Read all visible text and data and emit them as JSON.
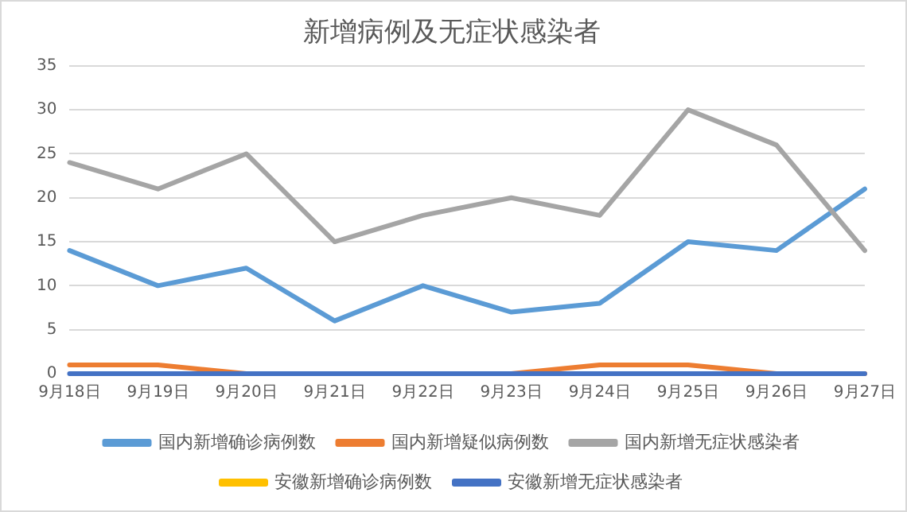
{
  "chart_data": {
    "type": "line",
    "title": "新增病例及无症状感染者",
    "categories": [
      "9月18日",
      "9月19日",
      "9月20日",
      "9月21日",
      "9月22日",
      "9月23日",
      "9月24日",
      "9月25日",
      "9月26日",
      "9月27日"
    ],
    "series": [
      {
        "name": "国内新增确诊病例数",
        "color": "#5b9bd5",
        "values": [
          14,
          10,
          12,
          6,
          10,
          7,
          8,
          15,
          14,
          21
        ]
      },
      {
        "name": "国内新增疑似病例数",
        "color": "#ed7d31",
        "values": [
          1,
          1,
          0,
          0,
          0,
          0,
          1,
          1,
          0,
          0
        ]
      },
      {
        "name": "国内新增无症状感染者",
        "color": "#a5a5a5",
        "values": [
          24,
          21,
          25,
          15,
          18,
          20,
          18,
          30,
          26,
          14
        ]
      },
      {
        "name": "安徽新增确诊病例数",
        "color": "#ffc000",
        "values": [
          null,
          null,
          null,
          null,
          null,
          null,
          null,
          null,
          null,
          null
        ]
      },
      {
        "name": "安徽新增无症状感染者",
        "color": "#4472c4",
        "values": [
          0,
          0,
          0,
          0,
          0,
          0,
          0,
          0,
          0,
          0
        ]
      }
    ],
    "ylim": [
      0,
      35
    ],
    "yticks": [
      0,
      5,
      10,
      15,
      20,
      25,
      30,
      35
    ],
    "grid": "y",
    "legend": "bottom",
    "marker": "none",
    "line_style": "solid"
  }
}
